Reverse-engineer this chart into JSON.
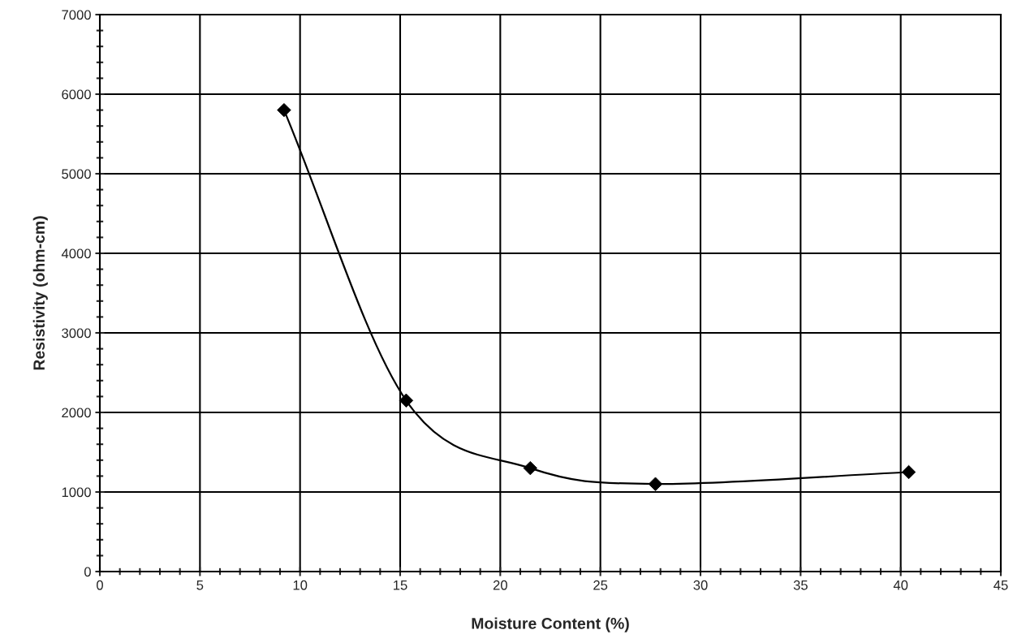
{
  "chart_data": {
    "type": "line",
    "xlabel": "Moisture Content (%)",
    "ylabel": "Resistivity (ohm-cm)",
    "x": [
      9.2,
      15.3,
      21.5,
      27.75,
      40.4
    ],
    "series": [
      {
        "color": "#000000",
        "values": [
          5800,
          2150,
          1300,
          1100,
          1250
        ]
      }
    ],
    "xlim": [
      0,
      45
    ],
    "xticks": [
      0,
      5,
      10,
      15,
      20,
      25,
      30,
      35,
      40,
      45
    ],
    "ylim": [
      0,
      7000
    ],
    "yticks": [
      0,
      1000,
      2000,
      3000,
      4000,
      5000,
      6000,
      7000
    ],
    "grid": true,
    "marker": "diamond",
    "line_style": "solid"
  }
}
